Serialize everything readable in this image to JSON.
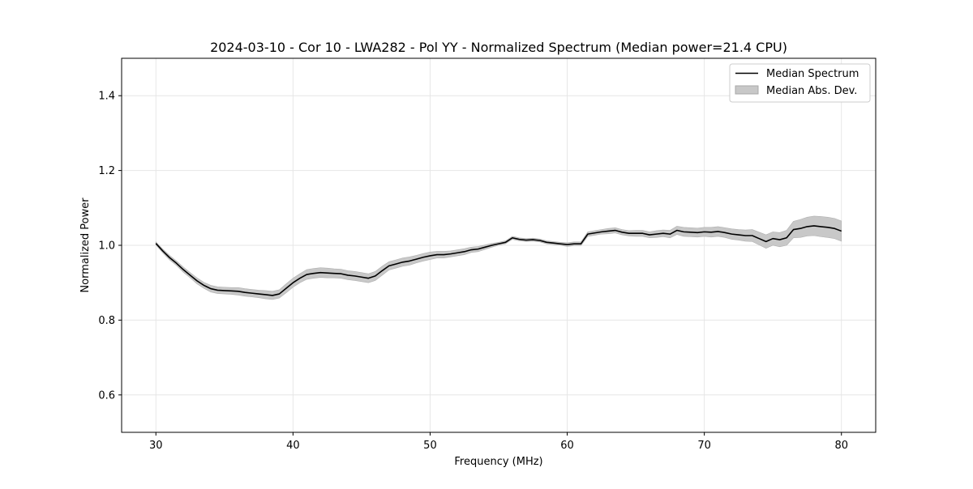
{
  "chart_data": {
    "type": "line",
    "title": "2024-03-10 - Cor 10 - LWA282 - Pol YY - Normalized Spectrum (Median power=21.4 CPU)",
    "xlabel": "Frequency (MHz)",
    "ylabel": "Normalized Power",
    "xlim": [
      27.5,
      82.5
    ],
    "ylim": [
      0.5,
      1.5
    ],
    "x_ticks": [
      30,
      40,
      50,
      60,
      70,
      80
    ],
    "x_tick_labels": [
      "30",
      "40",
      "50",
      "60",
      "70",
      "80"
    ],
    "y_ticks": [
      0.6,
      0.8,
      1.0,
      1.2,
      1.4
    ],
    "y_tick_labels": [
      "0.6",
      "0.8",
      "1.0",
      "1.2",
      "1.4"
    ],
    "grid": true,
    "legend_position": "top-right",
    "legend": [
      {
        "label": "Median Spectrum",
        "kind": "line",
        "color": "#000000"
      },
      {
        "label": "Median Abs. Dev.",
        "kind": "band",
        "color": "#c8c8c8"
      }
    ],
    "series": [
      {
        "name": "Median Spectrum",
        "color": "#000000",
        "x": [
          30,
          30.5,
          31,
          31.5,
          32,
          32.5,
          33,
          33.5,
          34,
          34.5,
          35,
          35.5,
          36,
          36.5,
          37,
          37.5,
          38,
          38.5,
          39,
          39.5,
          40,
          40.5,
          41,
          41.5,
          42,
          42.5,
          43,
          43.5,
          44,
          44.5,
          45,
          45.5,
          46,
          46.5,
          47,
          47.5,
          48,
          48.5,
          49,
          49.5,
          50,
          50.5,
          51,
          51.5,
          52,
          52.5,
          53,
          53.5,
          54,
          54.5,
          55,
          55.5,
          56,
          56.5,
          57,
          57.5,
          58,
          58.5,
          59,
          59.5,
          60,
          60.5,
          61,
          61.5,
          62,
          62.5,
          63,
          63.5,
          64,
          64.5,
          65,
          65.5,
          66,
          66.5,
          67,
          67.5,
          68,
          68.5,
          69,
          69.5,
          70,
          70.5,
          71,
          71.5,
          72,
          72.5,
          73,
          73.5,
          74,
          74.5,
          75,
          75.5,
          76,
          76.5,
          77,
          77.5,
          78,
          78.5,
          79,
          79.5,
          80
        ],
        "values": [
          1.005,
          0.985,
          0.967,
          0.952,
          0.935,
          0.92,
          0.905,
          0.893,
          0.884,
          0.88,
          0.879,
          0.878,
          0.877,
          0.874,
          0.872,
          0.87,
          0.868,
          0.866,
          0.87,
          0.885,
          0.9,
          0.912,
          0.922,
          0.925,
          0.927,
          0.926,
          0.925,
          0.924,
          0.92,
          0.918,
          0.915,
          0.912,
          0.918,
          0.932,
          0.945,
          0.95,
          0.955,
          0.958,
          0.963,
          0.968,
          0.972,
          0.975,
          0.975,
          0.977,
          0.98,
          0.983,
          0.988,
          0.99,
          0.995,
          1.0,
          1.004,
          1.008,
          1.02,
          1.016,
          1.014,
          1.015,
          1.013,
          1.008,
          1.006,
          1.004,
          1.002,
          1.004,
          1.004,
          1.03,
          1.033,
          1.036,
          1.038,
          1.04,
          1.035,
          1.032,
          1.032,
          1.032,
          1.028,
          1.03,
          1.032,
          1.03,
          1.04,
          1.036,
          1.035,
          1.034,
          1.036,
          1.035,
          1.037,
          1.034,
          1.03,
          1.028,
          1.026,
          1.026,
          1.018,
          1.01,
          1.018,
          1.015,
          1.02,
          1.042,
          1.045,
          1.05,
          1.052,
          1.05,
          1.048,
          1.045,
          1.038
        ]
      },
      {
        "name": "Median Abs. Dev.",
        "color": "#c8c8c8",
        "x": [
          30,
          30.5,
          31,
          31.5,
          32,
          32.5,
          33,
          33.5,
          34,
          34.5,
          35,
          35.5,
          36,
          36.5,
          37,
          37.5,
          38,
          38.5,
          39,
          39.5,
          40,
          40.5,
          41,
          41.5,
          42,
          42.5,
          43,
          43.5,
          44,
          44.5,
          45,
          45.5,
          46,
          46.5,
          47,
          47.5,
          48,
          48.5,
          49,
          49.5,
          50,
          50.5,
          51,
          51.5,
          52,
          52.5,
          53,
          53.5,
          54,
          54.5,
          55,
          55.5,
          56,
          56.5,
          57,
          57.5,
          58,
          58.5,
          59,
          59.5,
          60,
          60.5,
          61,
          61.5,
          62,
          62.5,
          63,
          63.5,
          64,
          64.5,
          65,
          65.5,
          66,
          66.5,
          67,
          67.5,
          68,
          68.5,
          69,
          69.5,
          70,
          70.5,
          71,
          71.5,
          72,
          72.5,
          73,
          73.5,
          74,
          74.5,
          75,
          75.5,
          76,
          76.5,
          77,
          77.5,
          78,
          78.5,
          79,
          79.5,
          80
        ],
        "deviation": [
          0.004,
          0.005,
          0.006,
          0.006,
          0.007,
          0.007,
          0.008,
          0.008,
          0.009,
          0.009,
          0.009,
          0.009,
          0.01,
          0.01,
          0.01,
          0.01,
          0.011,
          0.011,
          0.011,
          0.012,
          0.012,
          0.012,
          0.013,
          0.013,
          0.013,
          0.013,
          0.012,
          0.012,
          0.012,
          0.012,
          0.012,
          0.012,
          0.012,
          0.012,
          0.011,
          0.011,
          0.011,
          0.011,
          0.01,
          0.01,
          0.01,
          0.009,
          0.009,
          0.008,
          0.008,
          0.008,
          0.007,
          0.007,
          0.006,
          0.005,
          0.004,
          0.004,
          0.004,
          0.004,
          0.004,
          0.004,
          0.004,
          0.004,
          0.004,
          0.004,
          0.005,
          0.005,
          0.005,
          0.006,
          0.006,
          0.006,
          0.007,
          0.007,
          0.007,
          0.007,
          0.008,
          0.008,
          0.008,
          0.009,
          0.009,
          0.01,
          0.011,
          0.012,
          0.012,
          0.012,
          0.012,
          0.013,
          0.013,
          0.013,
          0.014,
          0.014,
          0.015,
          0.016,
          0.017,
          0.018,
          0.018,
          0.019,
          0.02,
          0.022,
          0.024,
          0.025,
          0.026,
          0.027,
          0.027,
          0.027,
          0.027
        ]
      }
    ]
  }
}
